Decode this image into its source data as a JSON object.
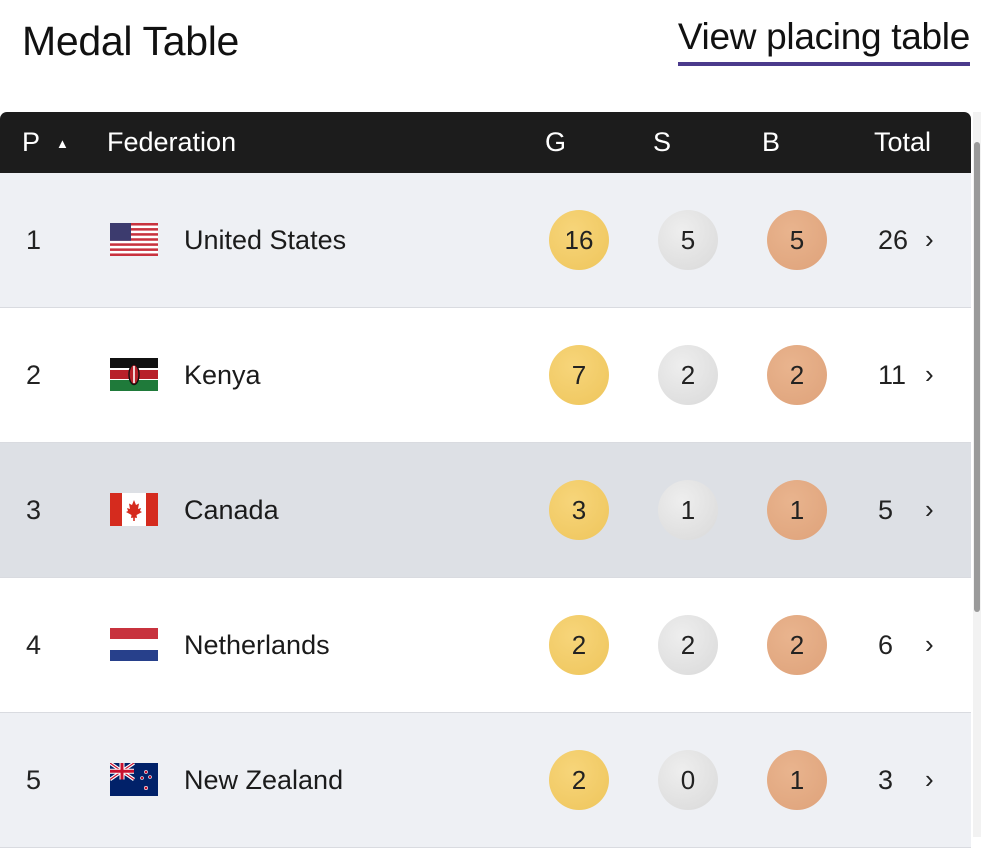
{
  "header": {
    "title": "Medal Table",
    "placing_link": "View placing table"
  },
  "columns": {
    "position": "P",
    "federation": "Federation",
    "gold": "G",
    "silver": "S",
    "bronze": "B",
    "total": "Total",
    "sort_icon": "sort-ascending-icon"
  },
  "rows": [
    {
      "pos": "1",
      "name": "United States",
      "flag": "us-flag-icon",
      "gold": "16",
      "silver": "5",
      "bronze": "5",
      "total": "26"
    },
    {
      "pos": "2",
      "name": "Kenya",
      "flag": "kenya-flag-icon",
      "gold": "7",
      "silver": "2",
      "bronze": "2",
      "total": "11"
    },
    {
      "pos": "3",
      "name": "Canada",
      "flag": "canada-flag-icon",
      "gold": "3",
      "silver": "1",
      "bronze": "1",
      "total": "5"
    },
    {
      "pos": "4",
      "name": "Netherlands",
      "flag": "netherlands-flag-icon",
      "gold": "2",
      "silver": "2",
      "bronze": "2",
      "total": "6"
    },
    {
      "pos": "5",
      "name": "New Zealand",
      "flag": "new-zealand-flag-icon",
      "gold": "2",
      "silver": "0",
      "bronze": "1",
      "total": "3"
    }
  ],
  "colors": {
    "header_bg": "#1c1c1c",
    "link_underline": "#4b3a8c",
    "gold": "#eec55b",
    "silver": "#d9d9d9",
    "bronze": "#dea27a"
  }
}
